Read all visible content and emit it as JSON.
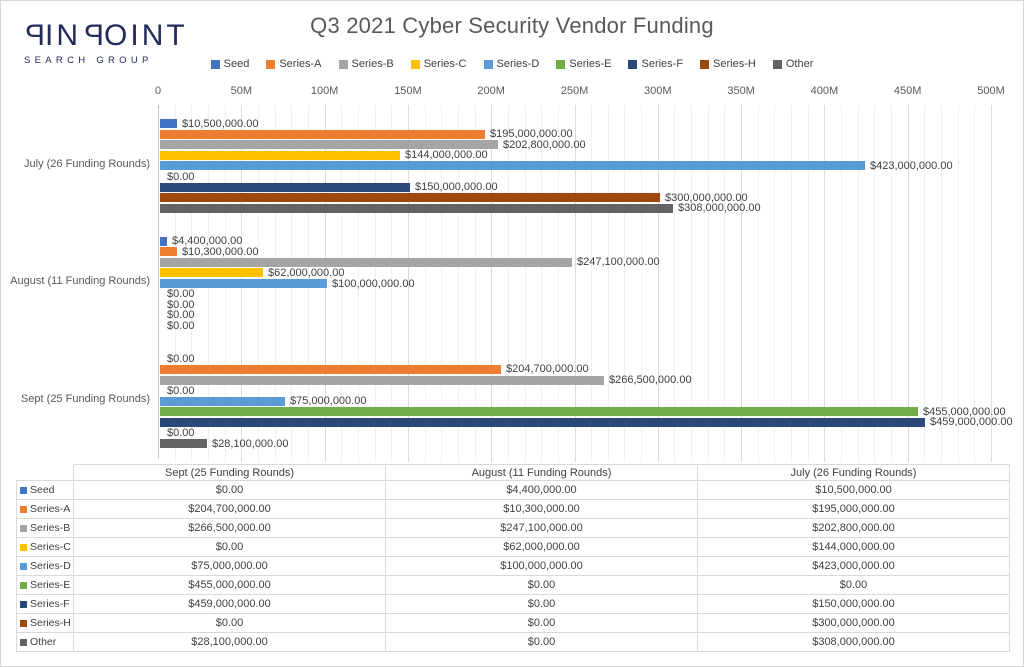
{
  "page": {
    "logo": {
      "line1": "PINPOINT",
      "line2": "SEARCH GROUP",
      "color": "#232c5b"
    },
    "title": "Q3 2021 Cyber Security Vendor Funding"
  },
  "chart_data": {
    "type": "bar",
    "orientation": "horizontal",
    "title": "Q3 2021 Cyber Security Vendor Funding",
    "legend_position": "top",
    "grid": true,
    "value_axis": {
      "position": "top",
      "ticks": [
        "0",
        "50M",
        "100M",
        "150M",
        "200M",
        "250M",
        "300M",
        "350M",
        "400M",
        "450M",
        "500M"
      ],
      "max": 500000000,
      "minor_unit": 10000000,
      "major_unit": 50000000
    },
    "value_label_format": "$#,##0.00",
    "categories": [
      "July (26 Funding Rounds)",
      "August (11 Funding Rounds)",
      "Sept (25 Funding Rounds)"
    ],
    "series": [
      {
        "name": "Seed",
        "color": "#4472C4",
        "values": [
          10500000,
          4400000,
          0
        ]
      },
      {
        "name": "Series-A",
        "color": "#ED7D31",
        "values": [
          195000000,
          10300000,
          204700000
        ]
      },
      {
        "name": "Series-B",
        "color": "#A5A5A5",
        "values": [
          202800000,
          247100000,
          266500000
        ]
      },
      {
        "name": "Series-C",
        "color": "#FFC000",
        "values": [
          144000000,
          62000000,
          0
        ]
      },
      {
        "name": "Series-D",
        "color": "#5B9BD5",
        "values": [
          423000000,
          100000000,
          75000000
        ]
      },
      {
        "name": "Series-E",
        "color": "#70AD47",
        "values": [
          0,
          0,
          455000000
        ]
      },
      {
        "name": "Series-F",
        "color": "#2A4878",
        "values": [
          150000000,
          0,
          459000000
        ]
      },
      {
        "name": "Series-H",
        "color": "#9E480E",
        "values": [
          300000000,
          0,
          0
        ]
      },
      {
        "name": "Other",
        "color": "#636363",
        "values": [
          308000000,
          0,
          28100000
        ]
      }
    ]
  },
  "table": {
    "corner_label": "",
    "columns": [
      "Sept (25 Funding Rounds)",
      "August (11 Funding Rounds)",
      "July (26 Funding Rounds)"
    ],
    "rows": [
      {
        "label": "Seed",
        "color": "#4472C4",
        "values": [
          "$0.00",
          "$4,400,000.00",
          "$10,500,000.00"
        ]
      },
      {
        "label": "Series-A",
        "color": "#ED7D31",
        "values": [
          "$204,700,000.00",
          "$10,300,000.00",
          "$195,000,000.00"
        ]
      },
      {
        "label": "Series-B",
        "color": "#A5A5A5",
        "values": [
          "$266,500,000.00",
          "$247,100,000.00",
          "$202,800,000.00"
        ]
      },
      {
        "label": "Series-C",
        "color": "#FFC000",
        "values": [
          "$0.00",
          "$62,000,000.00",
          "$144,000,000.00"
        ]
      },
      {
        "label": "Series-D",
        "color": "#5B9BD5",
        "values": [
          "$75,000,000.00",
          "$100,000,000.00",
          "$423,000,000.00"
        ]
      },
      {
        "label": "Series-E",
        "color": "#70AD47",
        "values": [
          "$455,000,000.00",
          "$0.00",
          "$0.00"
        ]
      },
      {
        "label": "Series-F",
        "color": "#2A4878",
        "values": [
          "$459,000,000.00",
          "$0.00",
          "$150,000,000.00"
        ]
      },
      {
        "label": "Series-H",
        "color": "#9E480E",
        "values": [
          "$0.00",
          "$0.00",
          "$300,000,000.00"
        ]
      },
      {
        "label": "Other",
        "color": "#636363",
        "values": [
          "$28,100,000.00",
          "$0.00",
          "$308,000,000.00"
        ]
      }
    ]
  }
}
